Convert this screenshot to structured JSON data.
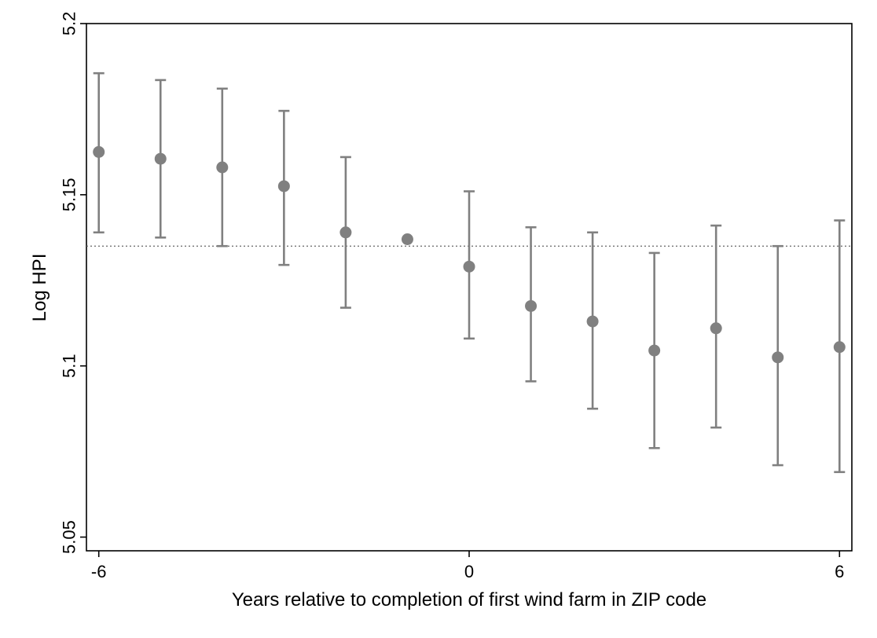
{
  "chart_data": {
    "type": "scatter",
    "title": "",
    "xlabel": "Years relative to completion of first wind farm in ZIP code",
    "ylabel": "Log HPI",
    "xlim": [
      -6.2,
      6.2
    ],
    "ylim": [
      5.046,
      5.2
    ],
    "x_ticks": [
      -6,
      0,
      6
    ],
    "x_tick_labels": [
      "-6",
      "0",
      "6"
    ],
    "y_ticks": [
      5.05,
      5.1,
      5.15,
      5.2
    ],
    "y_tick_labels": [
      "5.05",
      "5.1",
      "5.15",
      "5.2"
    ],
    "reference_line_y": 5.135,
    "grid": false,
    "series": [
      {
        "x": [
          -6,
          -5,
          -4,
          -3,
          -2,
          -1,
          0,
          1,
          2,
          3,
          4,
          5,
          6
        ],
        "y": [
          5.1625,
          5.1605,
          5.158,
          5.1525,
          5.139,
          5.137,
          5.129,
          5.1175,
          5.113,
          5.1045,
          5.111,
          5.1025,
          5.1055
        ],
        "lower": [
          5.139,
          5.1375,
          5.135,
          5.1295,
          5.117,
          null,
          5.108,
          5.0955,
          5.0875,
          5.076,
          5.082,
          5.071,
          5.069
        ],
        "upper": [
          5.1855,
          5.1835,
          5.181,
          5.1745,
          5.161,
          null,
          5.151,
          5.1405,
          5.139,
          5.133,
          5.141,
          5.135,
          5.1425
        ]
      }
    ],
    "marker_color": "#808080",
    "errorbar_color": "#808080",
    "frame_color": "#000000",
    "reference_line_color": "#666666"
  }
}
